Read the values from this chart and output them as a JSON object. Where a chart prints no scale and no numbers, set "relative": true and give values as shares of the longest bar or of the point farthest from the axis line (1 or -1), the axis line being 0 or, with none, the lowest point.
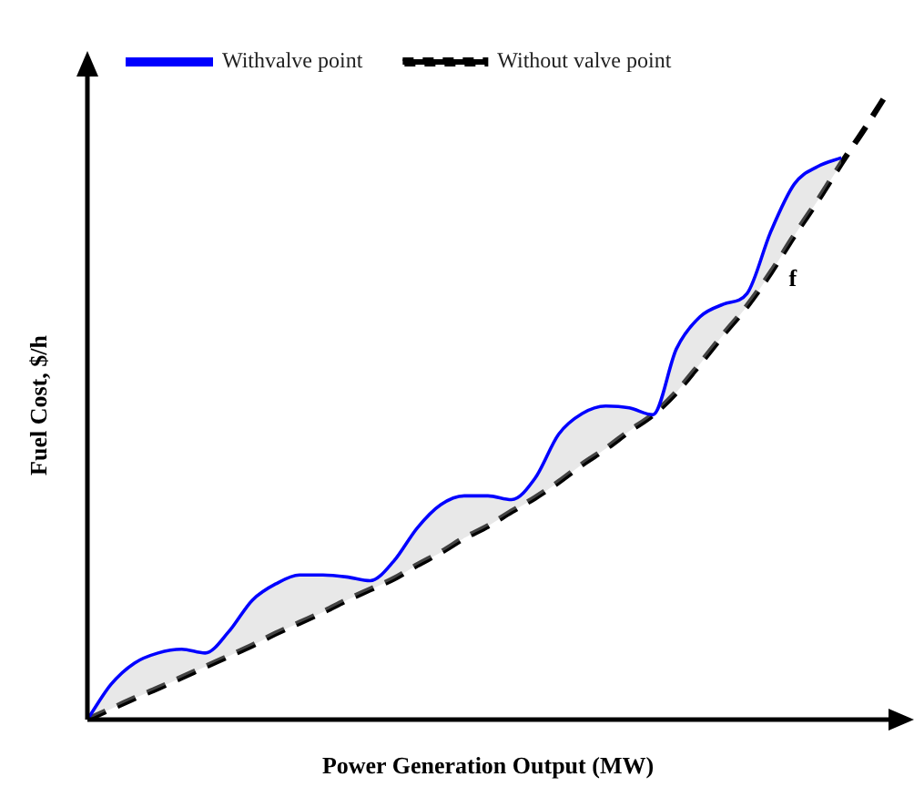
{
  "chart_data": {
    "type": "line",
    "relative": true,
    "xlabel": "Power Generation Output (MW)",
    "ylabel": "Fuel Cost, $/h",
    "legend": "top left",
    "marker": "none",
    "annotations": [
      "f"
    ],
    "categories": [
      null,
      null,
      null,
      null,
      null,
      null,
      null,
      null,
      null,
      null,
      null,
      null,
      null,
      null,
      null,
      null,
      null,
      null,
      null,
      null,
      null,
      null,
      null,
      null,
      null,
      null,
      null,
      null,
      null,
      null,
      null,
      null,
      null,
      null,
      null
    ],
    "series": [
      {
        "name": "Withvalve point",
        "color": "#0000ff",
        "line_style": "solid",
        "values": [
          0,
          0.056,
          0.09,
          0.106,
          0.112,
          0.106,
          0.14,
          0.19,
          0.216,
          0.23,
          0.23,
          0.227,
          0.221,
          0.252,
          0.305,
          0.342,
          0.356,
          0.356,
          0.35,
          0.384,
          0.454,
          0.487,
          0.499,
          0.496,
          0.485,
          0.59,
          0.641,
          0.661,
          0.678,
          0.776,
          0.852,
          0.88,
          0.894,
          null,
          null
        ]
      },
      {
        "name": "Without valve point",
        "color": "#000000",
        "line_style": "dashed",
        "values": [
          0,
          0.017,
          0.034,
          0.05,
          0.067,
          0.084,
          0.101,
          0.118,
          0.137,
          0.154,
          0.171,
          0.19,
          0.207,
          0.224,
          0.246,
          0.266,
          0.289,
          0.308,
          0.331,
          0.353,
          0.378,
          0.406,
          0.431,
          0.459,
          0.485,
          0.521,
          0.566,
          0.613,
          0.658,
          0.711,
          0.77,
          0.826,
          0.885,
          0.941,
          1.0
        ]
      }
    ]
  }
}
